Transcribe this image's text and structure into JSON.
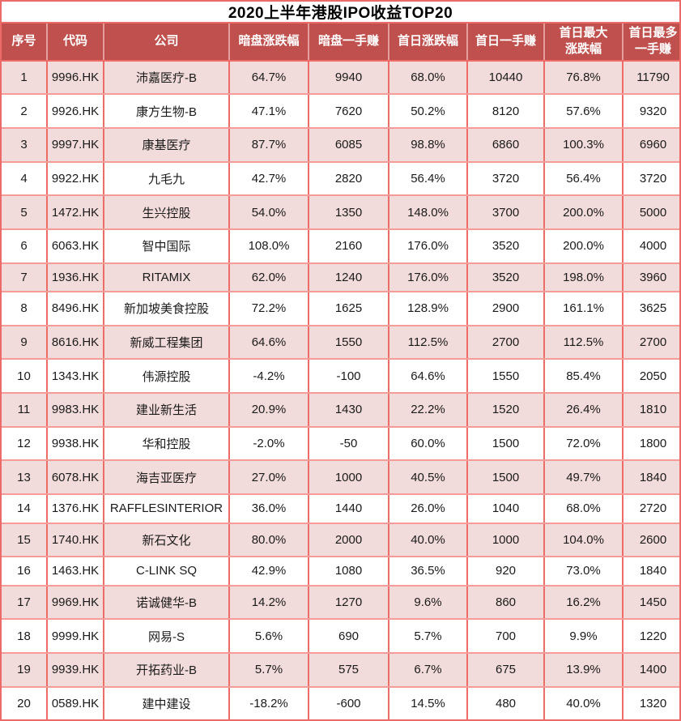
{
  "title": "2020上半年港股IPO收益TOP20",
  "colors": {
    "header_bg": "#C0504D",
    "header_text": "#FFFFFF",
    "row_odd_bg": "#F2DCDB",
    "row_even_bg": "#FFFFFF",
    "grid_v": "#EE6B68",
    "grid_h": "#F59B98",
    "header_sep": "#E49E9B",
    "outer_border": "#EC6A67",
    "title_text": "#000000",
    "cell_text": "#1A1A1A"
  },
  "columns_display": [
    "序号",
    "代码",
    "公司",
    "暗盘涨跌幅",
    "暗盘一手赚",
    "首日涨跌幅",
    "首日一手赚",
    "首日最大\n涨跌幅",
    "首日最多\n一手赚"
  ],
  "column_keys": [
    "rank",
    "code",
    "company",
    "grey-change",
    "grey-lot-profit",
    "day1-change",
    "day1-lot-profit",
    "day1-max-change",
    "day1-max-lot-profit"
  ],
  "chart_data": {
    "type": "table",
    "title": "2020上半年港股IPO收益TOP20",
    "columns": [
      "序号",
      "代码",
      "公司",
      "暗盘涨跌幅",
      "暗盘一手赚",
      "首日涨跌幅",
      "首日一手赚",
      "首日最大涨跌幅",
      "首日最多一手赚"
    ],
    "rows": [
      [
        "1",
        "9996.HK",
        "沛嘉医疗-B",
        "64.7%",
        "9940",
        "68.0%",
        "10440",
        "76.8%",
        "11790"
      ],
      [
        "2",
        "9926.HK",
        "康方生物-B",
        "47.1%",
        "7620",
        "50.2%",
        "8120",
        "57.6%",
        "9320"
      ],
      [
        "3",
        "9997.HK",
        "康基医疗",
        "87.7%",
        "6085",
        "98.8%",
        "6860",
        "100.3%",
        "6960"
      ],
      [
        "4",
        "9922.HK",
        "九毛九",
        "42.7%",
        "2820",
        "56.4%",
        "3720",
        "56.4%",
        "3720"
      ],
      [
        "5",
        "1472.HK",
        "生兴控股",
        "54.0%",
        "1350",
        "148.0%",
        "3700",
        "200.0%",
        "5000"
      ],
      [
        "6",
        "6063.HK",
        "智中国际",
        "108.0%",
        "2160",
        "176.0%",
        "3520",
        "200.0%",
        "4000"
      ],
      [
        "7",
        "1936.HK",
        "RITAMIX",
        "62.0%",
        "1240",
        "176.0%",
        "3520",
        "198.0%",
        "3960"
      ],
      [
        "8",
        "8496.HK",
        "新加坡美食控股",
        "72.2%",
        "1625",
        "128.9%",
        "2900",
        "161.1%",
        "3625"
      ],
      [
        "9",
        "8616.HK",
        "新威工程集团",
        "64.6%",
        "1550",
        "112.5%",
        "2700",
        "112.5%",
        "2700"
      ],
      [
        "10",
        "1343.HK",
        "伟源控股",
        "-4.2%",
        "-100",
        "64.6%",
        "1550",
        "85.4%",
        "2050"
      ],
      [
        "11",
        "9983.HK",
        "建业新生活",
        "20.9%",
        "1430",
        "22.2%",
        "1520",
        "26.4%",
        "1810"
      ],
      [
        "12",
        "9938.HK",
        "华和控股",
        "-2.0%",
        "-50",
        "60.0%",
        "1500",
        "72.0%",
        "1800"
      ],
      [
        "13",
        "6078.HK",
        "海吉亚医疗",
        "27.0%",
        "1000",
        "40.5%",
        "1500",
        "49.7%",
        "1840"
      ],
      [
        "14",
        "1376.HK",
        "RAFFLESINTERIOR",
        "36.0%",
        "1440",
        "26.0%",
        "1040",
        "68.0%",
        "2720"
      ],
      [
        "15",
        "1740.HK",
        "新石文化",
        "80.0%",
        "2000",
        "40.0%",
        "1000",
        "104.0%",
        "2600"
      ],
      [
        "16",
        "1463.HK",
        "C-LINK SQ",
        "42.9%",
        "1080",
        "36.5%",
        "920",
        "73.0%",
        "1840"
      ],
      [
        "17",
        "9969.HK",
        "诺诚健华-B",
        "14.2%",
        "1270",
        "9.6%",
        "860",
        "16.2%",
        "1450"
      ],
      [
        "18",
        "9999.HK",
        "网易-S",
        "5.6%",
        "690",
        "5.7%",
        "700",
        "9.9%",
        "1220"
      ],
      [
        "19",
        "9939.HK",
        "开拓药业-B",
        "5.7%",
        "575",
        "6.7%",
        "675",
        "13.9%",
        "1400"
      ],
      [
        "20",
        "0589.HK",
        "建中建设",
        "-18.2%",
        "-600",
        "14.5%",
        "480",
        "40.0%",
        "1320"
      ]
    ]
  }
}
